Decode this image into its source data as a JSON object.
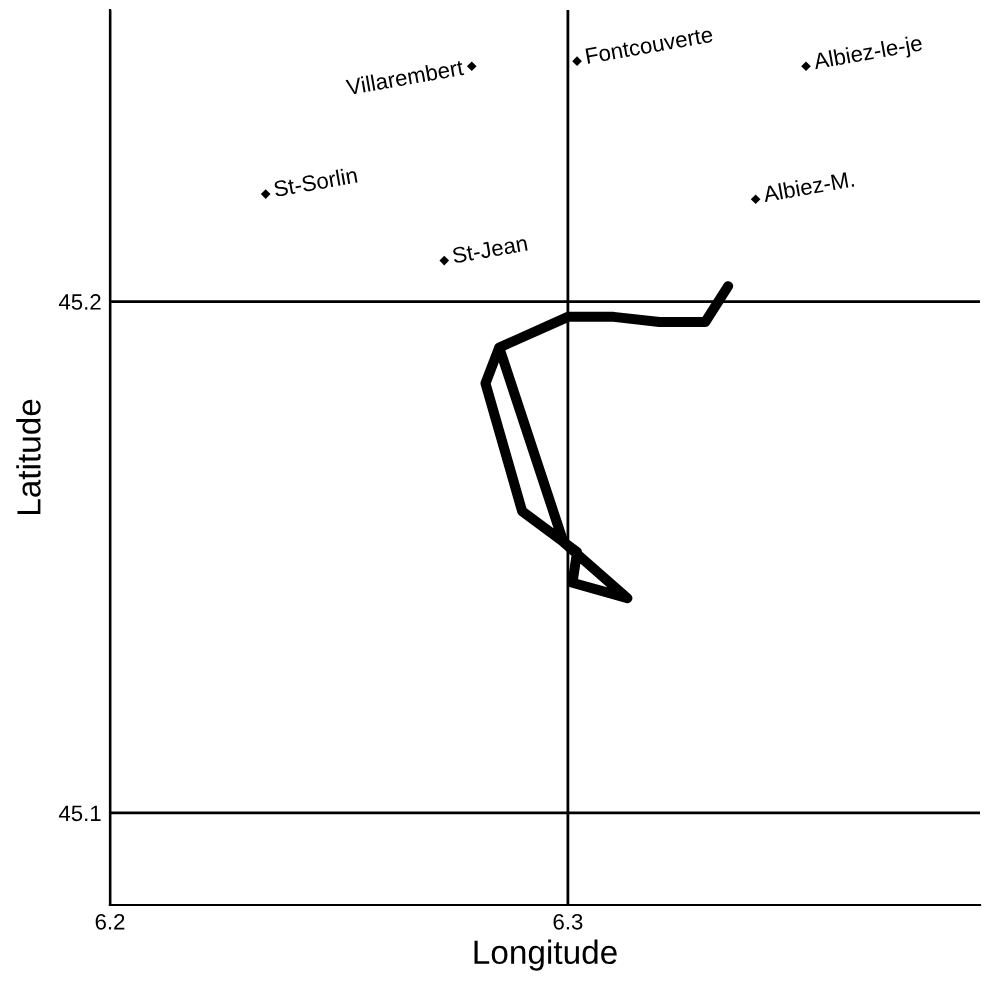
{
  "chart_data": {
    "type": "line",
    "xlabel": "Longitude",
    "ylabel": "Latitude",
    "xlim": [
      6.2,
      6.39
    ],
    "ylim": [
      45.082,
      45.257
    ],
    "xticks": [
      6.2,
      6.3
    ],
    "yticks": [
      45.1,
      45.2
    ],
    "grid": true,
    "series": [
      {
        "color": "#000000",
        "line_style": "solid",
        "x": [
          6.335,
          6.33,
          6.32,
          6.31,
          6.3,
          6.285,
          6.282,
          6.29,
          6.302,
          6.301,
          6.313,
          6.299,
          6.285
        ],
        "values": [
          45.203,
          45.196,
          45.196,
          45.197,
          45.197,
          45.191,
          45.184,
          45.159,
          45.151,
          45.145,
          45.142,
          45.153,
          45.191
        ]
      },
      {
        "type": "scatter",
        "color": "#000000",
        "marker": "diamond",
        "x": [
          6.279,
          6.302,
          6.352,
          6.234,
          6.341,
          6.273
        ],
        "values": [
          45.246,
          45.247,
          45.246,
          45.221,
          45.22,
          45.208
        ]
      }
    ],
    "annotations": [
      {
        "text": "Villarembert",
        "x": 6.279,
        "y": 45.246
      },
      {
        "text": "Fontcouverte",
        "x": 6.302,
        "y": 45.247
      },
      {
        "text": "Albiez-le-je",
        "x": 6.352,
        "y": 45.246
      },
      {
        "text": "St-Sorlin",
        "x": 6.234,
        "y": 45.221
      },
      {
        "text": "Albiez-M.",
        "x": 6.341,
        "y": 45.22
      },
      {
        "text": "St-Jean",
        "x": 6.273,
        "y": 45.208
      }
    ]
  }
}
